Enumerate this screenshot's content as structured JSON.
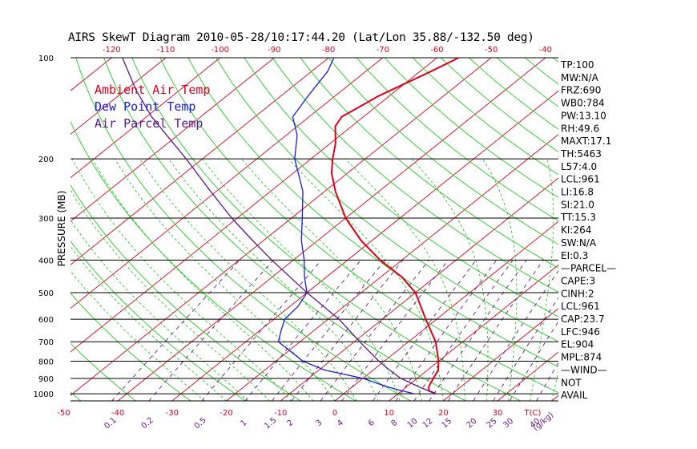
{
  "chart_data": {
    "type": "line",
    "title": "AIRS SkewT Diagram 2010-05-28/10:17:44.20 (Lat/Lon 35.88/-132.50 deg)",
    "ylabel": "PRESSURE (MB)",
    "y_scale": "log",
    "ylim": [
      1050,
      100
    ],
    "pressure_ticks": [
      "100",
      "200",
      "300",
      "400",
      "500",
      "600",
      "700",
      "800",
      "900",
      "1000"
    ],
    "pressure_values": [
      100,
      200,
      300,
      400,
      500,
      600,
      700,
      800,
      900,
      1000
    ],
    "top_temp_ticks": [
      "-120",
      "-110",
      "-100",
      "-90",
      "-80",
      "-70",
      "-60",
      "-50",
      "-40"
    ],
    "bottom_temp_ticks": [
      "-50",
      "-40",
      "-30",
      "-20",
      "-10",
      "0",
      "10",
      "20",
      "30"
    ],
    "bottom_temp_label": "T(C)",
    "mixing_ratio_ticks": [
      "0.1",
      "0.2",
      "0.5",
      "1",
      "1.5",
      "2",
      "3",
      "4",
      "6",
      "8",
      "10",
      "12",
      "15",
      "20",
      "25",
      "30",
      "40"
    ],
    "mixing_ratio_label": "(g/kg)",
    "legend": [
      {
        "label": "Ambient Air Temp",
        "color": "#e0001b"
      },
      {
        "label": "Dew Point Temp",
        "color": "#1a1ae0"
      },
      {
        "label": "Air Parcel Temp",
        "color": "#5a1a8a"
      }
    ],
    "series": [
      {
        "name": "Ambient Air Temp",
        "color": "#e0001b",
        "pressure": [
          1000,
          980,
          950,
          900,
          850,
          800,
          700,
          600,
          500,
          450,
          400,
          350,
          300,
          250,
          220,
          200,
          180,
          160,
          150,
          130,
          110,
          100
        ],
        "temp": [
          17,
          15,
          14,
          13,
          12,
          10,
          5,
          -2,
          -10,
          -16,
          -24,
          -32,
          -40,
          -48,
          -53,
          -56,
          -59,
          -63,
          -64,
          -62,
          -58,
          -56
        ]
      },
      {
        "name": "Dew Point Temp",
        "color": "#1a1ae0",
        "pressure": [
          1000,
          980,
          950,
          900,
          850,
          800,
          700,
          650,
          600,
          550,
          500,
          450,
          400,
          350,
          300,
          250,
          200,
          170,
          150,
          130,
          110,
          100
        ],
        "temp": [
          13,
          10,
          6,
          0,
          -9,
          -15,
          -24,
          -26,
          -28,
          -28.5,
          -30,
          -34,
          -38,
          -43,
          -48,
          -54,
          -63,
          -68,
          -73,
          -75,
          -77,
          -79
        ]
      },
      {
        "name": "Air Parcel Temp",
        "color": "#5a1a8a",
        "pressure": [
          1000,
          980,
          961,
          900,
          850,
          800,
          700,
          600,
          500,
          400,
          350,
          300,
          250,
          200,
          150,
          125,
          100
        ],
        "temp": [
          17,
          15,
          13,
          7,
          3,
          -1,
          -9,
          -18,
          -30,
          -44,
          -52,
          -61,
          -71,
          -83,
          -99,
          -108,
          -118
        ]
      }
    ],
    "statistics": [
      "TP:100",
      "MW:N/A",
      "FRZ:690",
      "WB0:784",
      "PW:13.10",
      "RH:49.6",
      "MAXT:17.1",
      "TH:5463",
      "L57:4.0",
      "LCL:961",
      "LI:16.8",
      "SI:21.0",
      "TT:15.3",
      "KI:264",
      "SW:N/A",
      "EI:0.3",
      "—PARCEL—",
      "CAPE:3",
      "CINH:2",
      "LCL:961",
      "CAP:23.7",
      "LFC:946",
      "EL:904",
      "MPL:874",
      "—WIND—",
      "NOT",
      "AVAIL"
    ],
    "colors": {
      "isotherm": "#e0001b",
      "dry_adiabat": "#22cc22",
      "moist_adiabat": "#22cc22",
      "mixing_ratio": "#6a1a8a",
      "isobar": "#000000"
    }
  }
}
